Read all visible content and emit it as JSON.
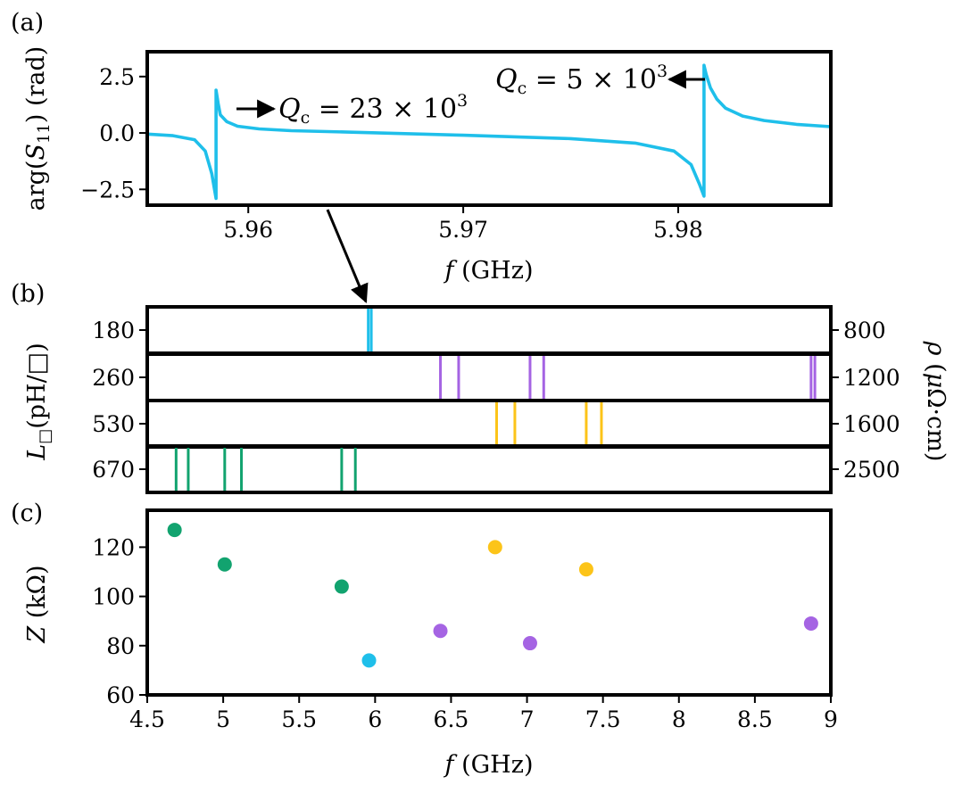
{
  "colors": {
    "cyan": "#1fbfea",
    "purple": "#a564e3",
    "yellow": "#fcc419",
    "green": "#12a36f"
  },
  "chart_data": [
    {
      "panel_label": "(a)",
      "type": "line",
      "xlabel": "f (GHz)",
      "ylabel": "arg(S11) (rad)",
      "xlim": [
        5.9553,
        5.9871
      ],
      "ylim": [
        -3.2,
        3.6
      ],
      "x_ticks": [
        5.96,
        5.97,
        5.98
      ],
      "x_tick_labels": [
        "5.96",
        "5.97",
        "5.98"
      ],
      "y_ticks": [
        2.5,
        0.0,
        -2.5
      ],
      "y_tick_labels": [
        "2.5",
        "0.0",
        "−2.5"
      ],
      "series_color": "#1fbfea",
      "series": [
        {
          "x": [
            5.9553,
            5.9565,
            5.9575,
            5.958,
            5.9583,
            5.9585,
            5.9585,
            5.9586,
            5.9587,
            5.959,
            5.9595,
            5.9605,
            5.962,
            5.965,
            5.97,
            5.975,
            5.978,
            5.9798,
            5.9806,
            5.981,
            5.9812,
            5.9812,
            5.9813,
            5.9815,
            5.9818,
            5.9822,
            5.983,
            5.984,
            5.9855,
            5.9871
          ],
          "y": [
            -0.05,
            -0.12,
            -0.3,
            -0.8,
            -1.8,
            -2.9,
            1.9,
            1.3,
            0.8,
            0.5,
            0.3,
            0.18,
            0.1,
            0.03,
            -0.1,
            -0.25,
            -0.45,
            -0.8,
            -1.4,
            -2.3,
            -2.8,
            3.0,
            2.6,
            2.0,
            1.5,
            1.1,
            0.75,
            0.55,
            0.38,
            0.28
          ]
        }
      ],
      "annotations": [
        {
          "text_main": "Q",
          "text_sub": "c",
          "text_rest": " = 23 × 10",
          "text_sup": "3"
        },
        {
          "text_main": "Q",
          "text_sub": "c",
          "text_rest": " = 5 × 10",
          "text_sup": "3"
        }
      ]
    },
    {
      "panel_label": "(b)",
      "type": "bar",
      "ylabel_left": "L□(pH/□)",
      "ylabel_right": "ρ (μΩ·cm)",
      "xlim": [
        4.5,
        9.0
      ],
      "rows": [
        {
          "left": "180",
          "right": "800",
          "color": "#1fbfea",
          "lines": [
            5.955,
            5.975
          ]
        },
        {
          "left": "260",
          "right": "1200",
          "color": "#a564e3",
          "lines": [
            6.43,
            6.55,
            7.02,
            7.11,
            8.87,
            8.895
          ]
        },
        {
          "left": "530",
          "right": "1600",
          "color": "#fcc419",
          "lines": [
            6.8,
            6.92,
            7.39,
            7.49
          ]
        },
        {
          "left": "670",
          "right": "2500",
          "color": "#12a36f",
          "lines": [
            4.69,
            4.77,
            5.01,
            5.12,
            5.78,
            5.87
          ]
        }
      ]
    },
    {
      "panel_label": "(c)",
      "type": "scatter",
      "xlabel": "f (GHz)",
      "ylabel": "Z (kΩ)",
      "xlim": [
        4.5,
        9.0
      ],
      "ylim": [
        60,
        135
      ],
      "x_ticks": [
        4.5,
        5,
        5.5,
        6,
        6.5,
        7,
        7.5,
        8,
        8.5,
        9
      ],
      "x_tick_labels": [
        "4.5",
        "5",
        "5.5",
        "6",
        "6.5",
        "7",
        "7.5",
        "8",
        "8.5",
        "9"
      ],
      "y_ticks": [
        60,
        80,
        100,
        120
      ],
      "y_tick_labels": [
        "60",
        "80",
        "100",
        "120"
      ],
      "points": [
        {
          "x": 4.68,
          "y": 127,
          "color": "#12a36f"
        },
        {
          "x": 5.01,
          "y": 113,
          "color": "#12a36f"
        },
        {
          "x": 5.78,
          "y": 104,
          "color": "#12a36f"
        },
        {
          "x": 5.96,
          "y": 74,
          "color": "#1fbfea"
        },
        {
          "x": 6.43,
          "y": 86,
          "color": "#a564e3"
        },
        {
          "x": 6.79,
          "y": 120,
          "color": "#fcc419"
        },
        {
          "x": 7.02,
          "y": 81,
          "color": "#a564e3"
        },
        {
          "x": 7.39,
          "y": 111,
          "color": "#fcc419"
        },
        {
          "x": 8.87,
          "y": 89,
          "color": "#a564e3"
        }
      ]
    }
  ]
}
